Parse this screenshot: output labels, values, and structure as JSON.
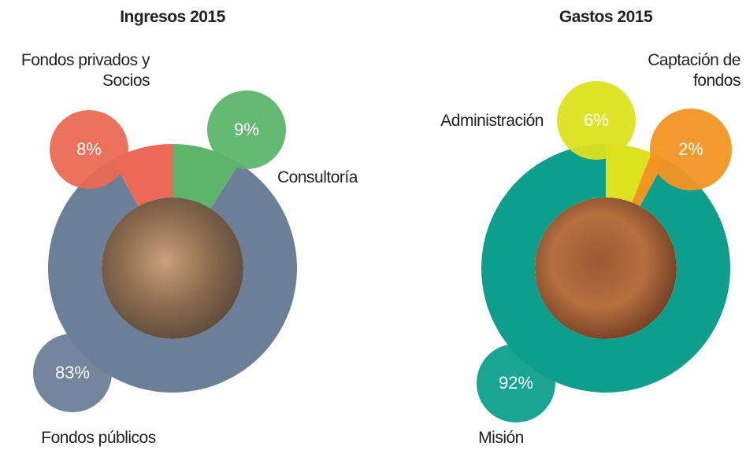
{
  "chart_data": [
    {
      "type": "pie",
      "title": "Ingresos 2015",
      "categories": [
        "Consultoría",
        "Fondos públicos",
        "Fondos privados y Socios"
      ],
      "values": [
        9,
        83,
        8
      ],
      "value_labels": [
        "9%",
        "83%",
        "8%"
      ],
      "colors": [
        "#5cb56b",
        "#6b7f99",
        "#ec6a55"
      ]
    },
    {
      "type": "pie",
      "title": "Gastos 2015",
      "categories": [
        "Administración",
        "Captación de fondos",
        "Misión"
      ],
      "values": [
        6,
        2,
        92
      ],
      "value_labels": [
        "6%",
        "2%",
        "92%"
      ],
      "colors": [
        "#dde21f",
        "#f39323",
        "#0e9f8c"
      ]
    }
  ]
}
